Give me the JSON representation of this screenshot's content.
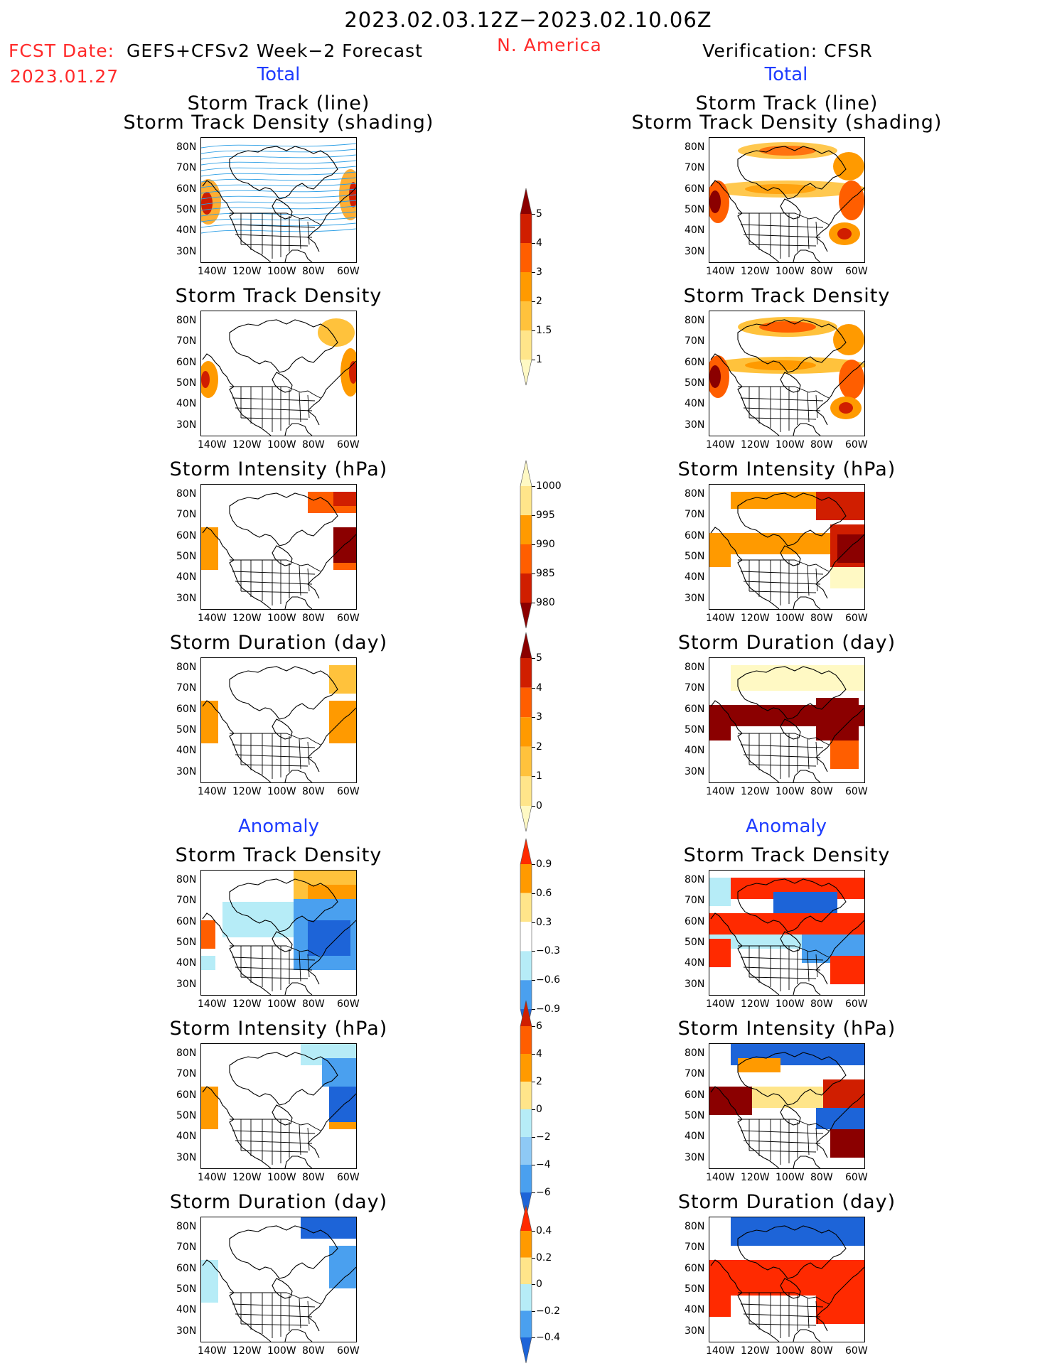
{
  "header": {
    "period": "2023.02.03.12Z−2023.02.10.06Z",
    "fcst_date_label": "FCST Date:",
    "fcst_date_value": "2023.01.27",
    "forecast_name": "GEFS+CFSv2 Week−2 Forecast",
    "region": "N. America",
    "verification": "Verification: CFSR",
    "total_label": "Total",
    "anomaly_label": "Anomaly"
  },
  "panel_titles": {
    "track_line": "Storm Track (line)",
    "track_shading": "Storm Track Density (shading)",
    "density": "Storm Track Density",
    "intensity": "Storm Intensity (hPa)",
    "duration": "Storm Duration (day)"
  },
  "axes": {
    "lat_ticks": [
      "80N",
      "70N",
      "60N",
      "50N",
      "40N",
      "30N"
    ],
    "lon_ticks": [
      "140W",
      "120W",
      "100W",
      "80W",
      "60W"
    ]
  },
  "colorbars": {
    "density_total": {
      "labels": [
        "5",
        "4",
        "3",
        "2",
        "1.5",
        "1"
      ],
      "colors": [
        "#8b0000",
        "#d01e00",
        "#ff5e00",
        "#ff9a00",
        "#ffc23c",
        "#ffe58a",
        "#fff9c4"
      ]
    },
    "intensity_total": {
      "labels": [
        "1000",
        "995",
        "990",
        "985",
        "980"
      ],
      "colors": [
        "#fff9c4",
        "#ffe58a",
        "#ff9a00",
        "#ff5e00",
        "#d01e00",
        "#8b0000"
      ]
    },
    "duration_total": {
      "labels": [
        "5",
        "4",
        "3",
        "2",
        "1",
        "0"
      ],
      "colors": [
        "#8b0000",
        "#d01e00",
        "#ff5e00",
        "#ff9a00",
        "#ffc23c",
        "#ffe58a",
        "#fff9c4"
      ]
    },
    "density_anom": {
      "labels": [
        "0.9",
        "0.6",
        "0.3",
        "−0.3",
        "−0.6",
        "−0.9"
      ],
      "colors": [
        "#ff2a00",
        "#ff9a00",
        "#ffe58a",
        "#ffffff",
        "#b6ecf7",
        "#4aa0ef",
        "#1d64d8"
      ]
    },
    "intensity_anom": {
      "labels": [
        "6",
        "4",
        "2",
        "0",
        "−2",
        "−4",
        "−6"
      ],
      "colors": [
        "#d01e00",
        "#ff5e00",
        "#ff9a00",
        "#ffe58a",
        "#b6ecf7",
        "#8ec9f5",
        "#4aa0ef",
        "#1d64d8"
      ]
    },
    "duration_anom": {
      "labels": [
        "0.4",
        "0.2",
        "0",
        "−0.2",
        "−0.4"
      ],
      "colors": [
        "#ff2a00",
        "#ff9a00",
        "#ffe58a",
        "#b6ecf7",
        "#4aa0ef",
        "#1d64d8"
      ]
    }
  }
}
